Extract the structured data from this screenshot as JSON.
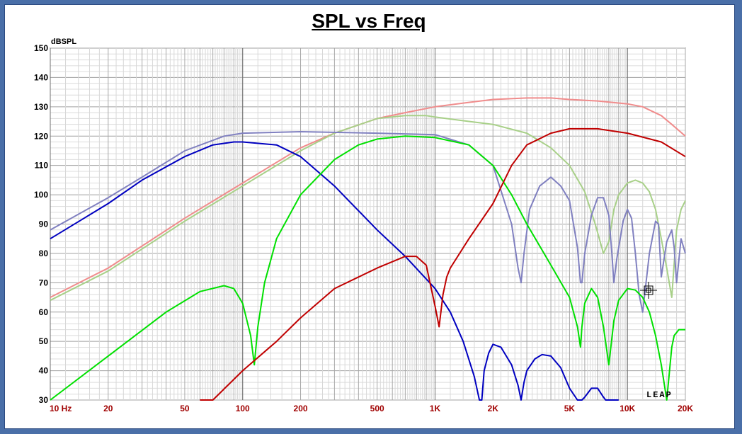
{
  "chart_data": {
    "type": "line",
    "title": "SPL vs Freq",
    "ylabel": "dBSPL",
    "xlabel": "",
    "x_scale": "log",
    "xlim": [
      10,
      20000
    ],
    "ylim": [
      30,
      150
    ],
    "y_ticks": [
      "150",
      "140",
      "130",
      "120",
      "110",
      "100",
      "90",
      "80",
      "70",
      "60",
      "50",
      "40",
      "30"
    ],
    "x_ticks": [
      {
        "value": 10,
        "label": "10  Hz"
      },
      {
        "value": 20,
        "label": "20"
      },
      {
        "value": 50,
        "label": "50"
      },
      {
        "value": 100,
        "label": "100"
      },
      {
        "value": 200,
        "label": "200"
      },
      {
        "value": 500,
        "label": "500"
      },
      {
        "value": 1000,
        "label": "1K"
      },
      {
        "value": 2000,
        "label": "2K"
      },
      {
        "value": 5000,
        "label": "5K"
      },
      {
        "value": 10000,
        "label": "10K"
      },
      {
        "value": 20000,
        "label": "20K"
      }
    ],
    "grid": true,
    "watermark": "LEAP",
    "series": [
      {
        "color": "#f08c8c",
        "x": [
          10,
          20,
          50,
          100,
          200,
          300,
          500,
          700,
          1000,
          1500,
          2000,
          3000,
          4000,
          5000,
          7000,
          10000,
          12000,
          15000,
          17000,
          20000
        ],
        "y": [
          65,
          75,
          92,
          104,
          116,
          121,
          126,
          128,
          130,
          131.5,
          132.5,
          133,
          133,
          132.5,
          132,
          131,
          130,
          127,
          124,
          120
        ]
      },
      {
        "color": "#a8d088",
        "x": [
          10,
          20,
          50,
          100,
          200,
          300,
          500,
          700,
          900,
          1000,
          1500,
          2000,
          3000,
          4000,
          5000,
          6000,
          6800,
          7500,
          8000,
          8500,
          9000,
          10000,
          11000,
          12000,
          13000,
          14000,
          15000,
          16000,
          17000,
          18000,
          19000,
          20000
        ],
        "y": [
          64,
          74,
          91,
          103,
          115,
          121,
          126,
          127,
          127,
          126.5,
          125,
          124,
          121,
          116,
          110,
          101,
          90,
          80,
          84,
          95,
          100,
          104,
          105,
          104,
          101,
          95,
          85,
          75,
          65,
          88,
          95,
          98
        ]
      },
      {
        "color": "#8080c0",
        "x": [
          10,
          20,
          30,
          50,
          80,
          100,
          200,
          500,
          1000,
          1500,
          2000,
          2500,
          2700,
          2800,
          2900,
          3100,
          3500,
          4000,
          4500,
          5000,
          5500,
          5700,
          5800,
          6000,
          6500,
          7000,
          7500,
          8000,
          8300,
          8500,
          8800,
          9500,
          10000,
          10500,
          11000,
          11500,
          12000,
          13000,
          14000,
          14500,
          15000,
          16000,
          17000,
          17500,
          18000,
          19000,
          20000
        ],
        "y": [
          88,
          99,
          106,
          115,
          120,
          121,
          121.5,
          121,
          120.5,
          117,
          110,
          90,
          75,
          70,
          80,
          95,
          103,
          106,
          103,
          98,
          82,
          70,
          70,
          80,
          93,
          99,
          99,
          93,
          80,
          70,
          78,
          91,
          95,
          92,
          80,
          66,
          60,
          80,
          91,
          90,
          72,
          84,
          88,
          82,
          70,
          85,
          80
        ]
      },
      {
        "color": "#0000c0",
        "x": [
          10,
          15,
          20,
          30,
          50,
          70,
          90,
          100,
          150,
          200,
          300,
          500,
          700,
          1000,
          1200,
          1400,
          1600,
          1700,
          1750,
          1800,
          1900,
          2000,
          2200,
          2500,
          2700,
          2800,
          2900,
          3000,
          3300,
          3600,
          4000,
          4500,
          5000,
          5500,
          5700,
          5800,
          6000,
          6500,
          7000,
          7500,
          7700,
          8000,
          8500,
          9000
        ],
        "y": [
          85,
          92,
          97,
          105,
          113,
          117,
          118,
          118,
          117,
          113,
          103,
          88,
          79,
          68,
          60,
          50,
          38,
          30,
          29,
          40,
          46,
          49,
          48,
          42,
          35,
          28,
          36,
          40,
          44,
          45.5,
          45,
          41,
          34,
          29,
          28,
          29,
          31,
          34,
          34,
          31,
          28,
          28,
          28,
          28
        ]
      },
      {
        "color": "#00e000",
        "x": [
          10,
          20,
          40,
          60,
          80,
          90,
          100,
          110,
          115,
          120,
          130,
          150,
          200,
          300,
          400,
          500,
          700,
          1000,
          1500,
          2000,
          2500,
          3000,
          4000,
          5000,
          5500,
          5700,
          5800,
          6000,
          6500,
          7000,
          7500,
          8000,
          8500,
          9000,
          10000,
          11000,
          12000,
          13000,
          14000,
          15000,
          16000,
          17000,
          17500,
          18000,
          18500,
          19000,
          20000
        ],
        "y": [
          30,
          45,
          60,
          67,
          69,
          68,
          63,
          52,
          42,
          55,
          70,
          85,
          100,
          112,
          117,
          119,
          120,
          119.5,
          117,
          110,
          100,
          90,
          76,
          65,
          55,
          48,
          55,
          63,
          68,
          65,
          55,
          42,
          57,
          64,
          68,
          67.5,
          65,
          60,
          52,
          42,
          30,
          48,
          52,
          53,
          54,
          54,
          54
        ]
      },
      {
        "color": "#c00000",
        "x": [
          60,
          70,
          100,
          150,
          200,
          300,
          500,
          700,
          800,
          900,
          1000,
          1050,
          1100,
          1150,
          1200,
          1500,
          2000,
          2500,
          3000,
          4000,
          5000,
          7000,
          10000,
          15000,
          20000
        ],
        "y": [
          28,
          30,
          40,
          50,
          58,
          68,
          75,
          79,
          79,
          76,
          62,
          55,
          66,
          72,
          75,
          85,
          97,
          110,
          117,
          121,
          122.5,
          122.5,
          121,
          118,
          113
        ]
      }
    ]
  }
}
